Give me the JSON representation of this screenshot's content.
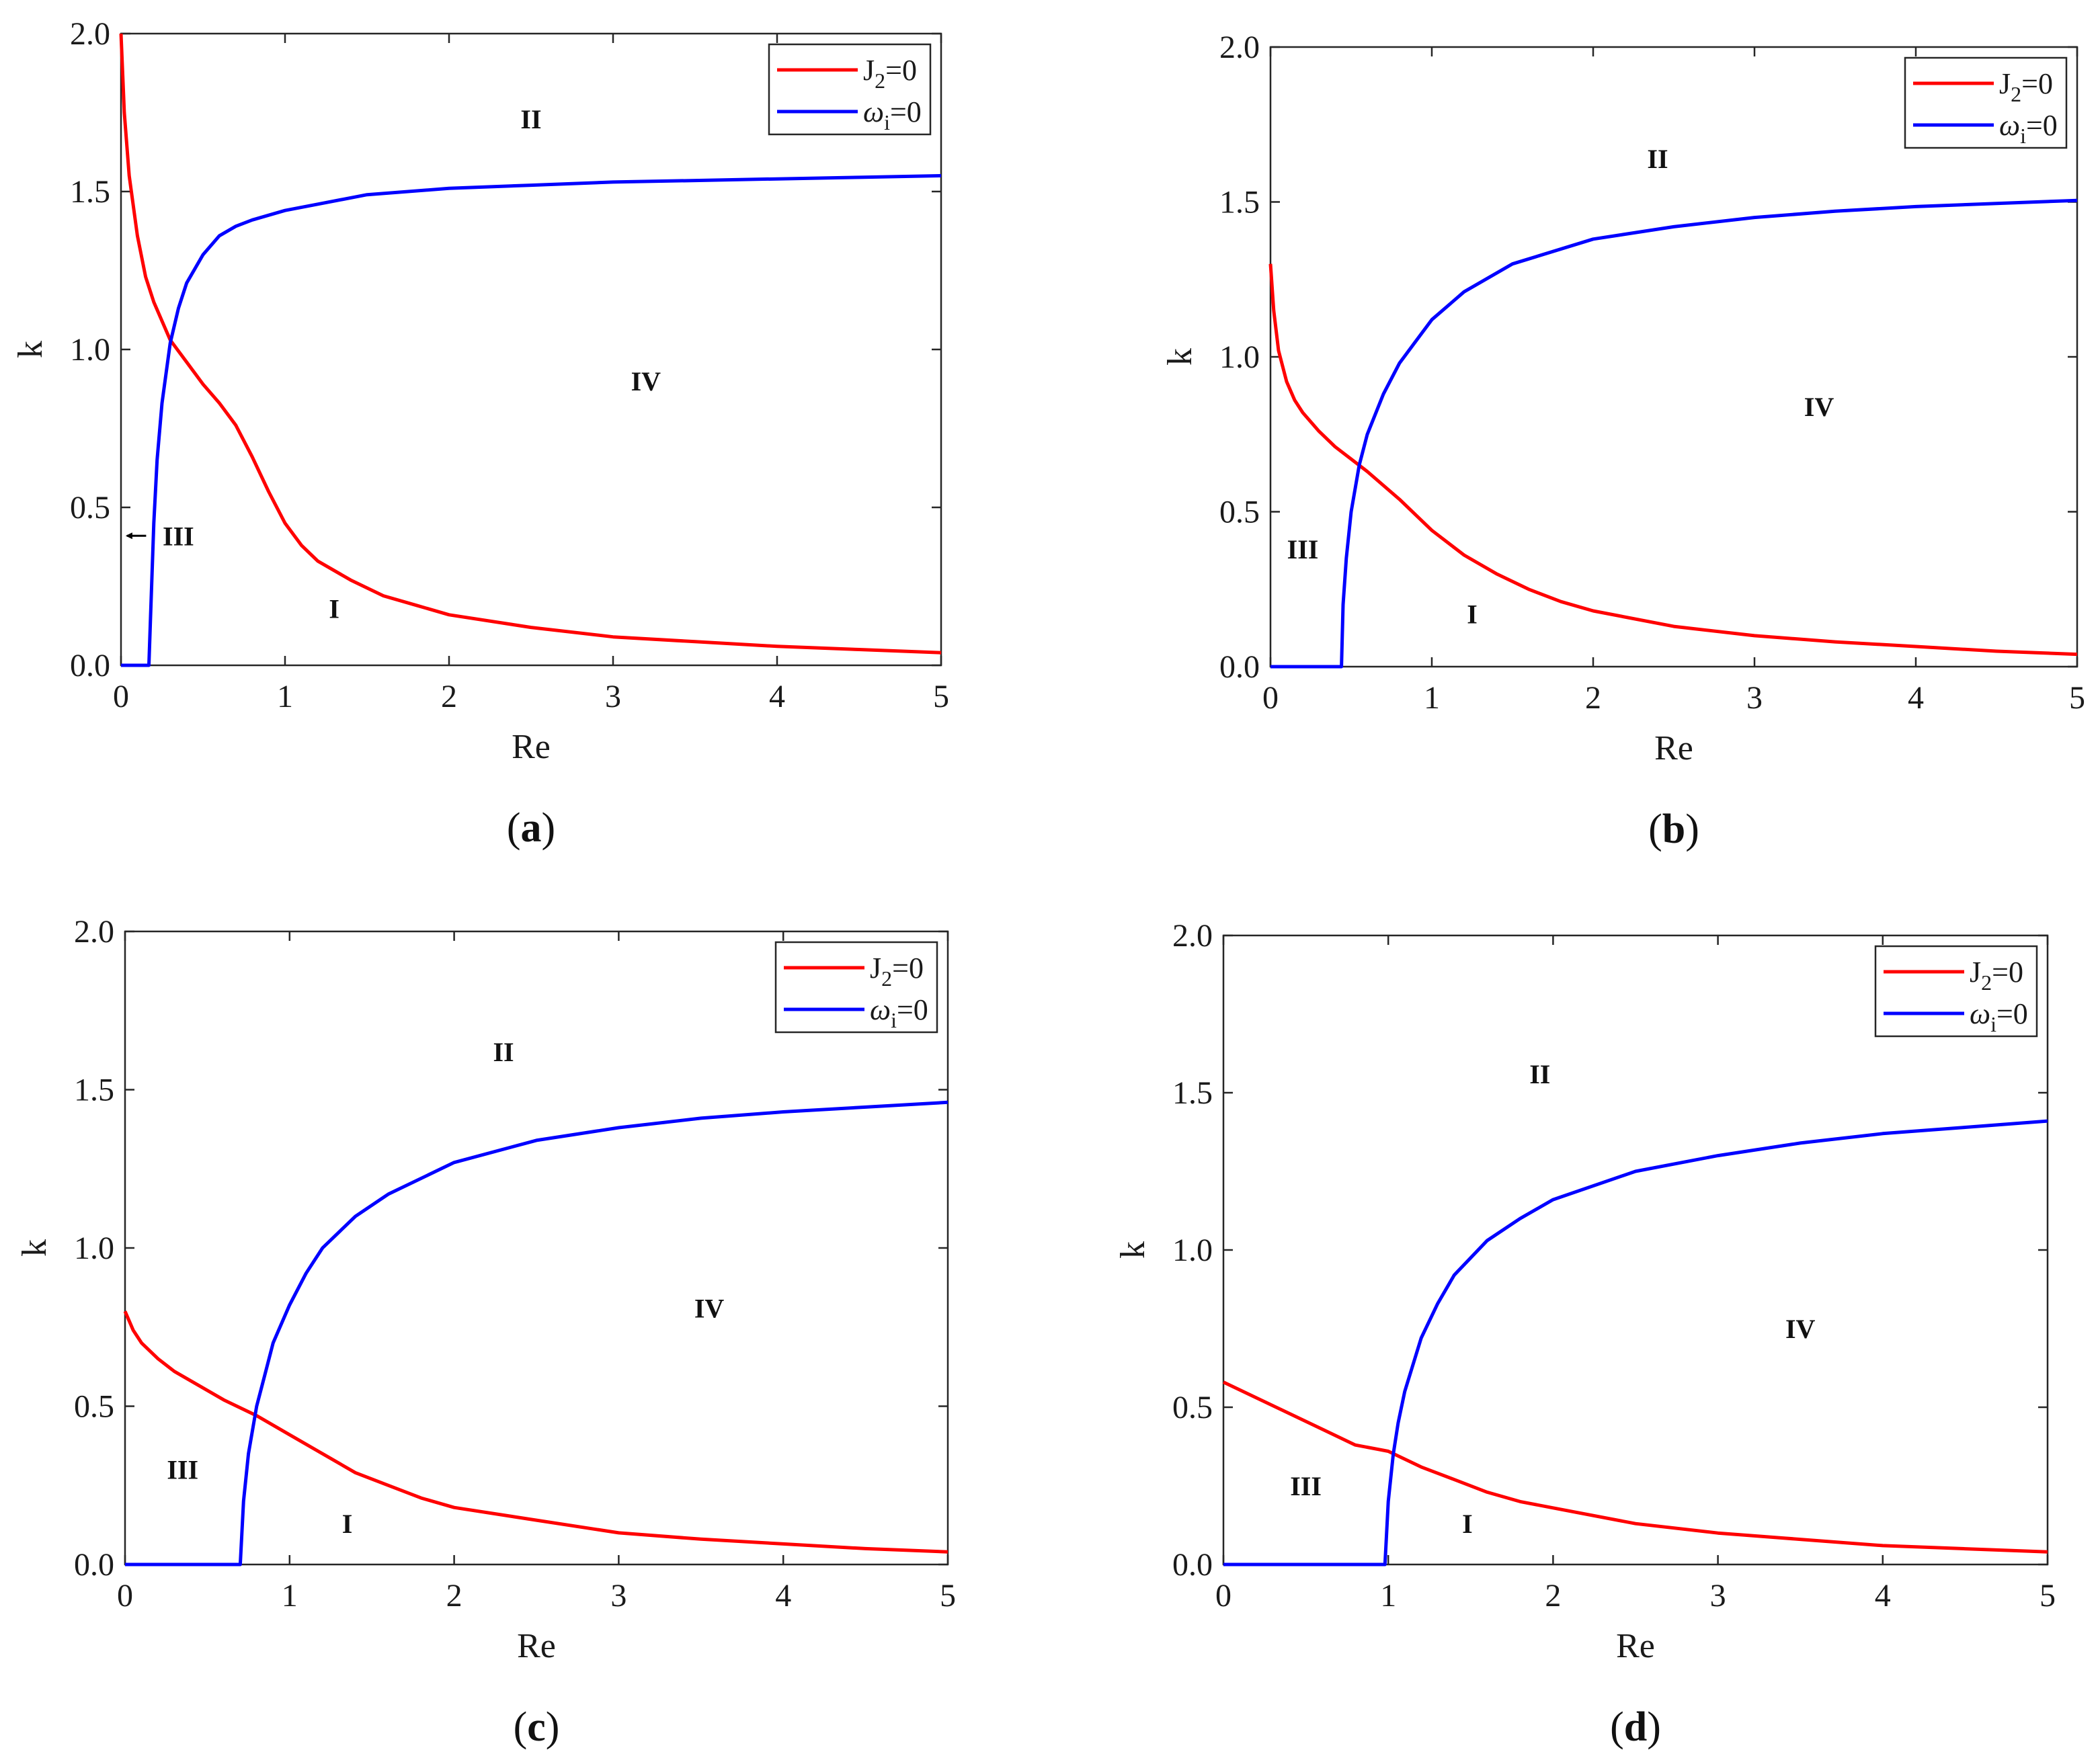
{
  "chart_data": [
    {
      "type": "line",
      "panel": "a",
      "panel_label": "(a)",
      "xlabel": "Re",
      "ylabel": "k",
      "xlim": [
        0,
        5
      ],
      "ylim": [
        0,
        2
      ],
      "xticks": [
        "0",
        "1",
        "2",
        "3",
        "4",
        "5"
      ],
      "yticks": [
        "0.0",
        "0.5",
        "1.0",
        "1.5",
        "2.0"
      ],
      "legend_position": "top-right",
      "series": [
        {
          "name": "J2=0",
          "color": "#ff0000",
          "x": [
            0,
            0.02,
            0.05,
            0.1,
            0.15,
            0.2,
            0.3,
            0.4,
            0.5,
            0.6,
            0.7,
            0.8,
            0.9,
            1.0,
            1.1,
            1.2,
            1.4,
            1.6,
            1.8,
            2.0,
            2.5,
            3.0,
            3.5,
            4.0,
            4.5,
            5.0
          ],
          "y": [
            2.0,
            1.75,
            1.55,
            1.36,
            1.23,
            1.15,
            1.03,
            0.96,
            0.89,
            0.83,
            0.76,
            0.66,
            0.55,
            0.45,
            0.38,
            0.33,
            0.27,
            0.22,
            0.19,
            0.16,
            0.12,
            0.09,
            0.075,
            0.06,
            0.05,
            0.04
          ]
        },
        {
          "name": "ωi=0",
          "color": "#0000ff",
          "x": [
            0,
            0.15,
            0.17,
            0.18,
            0.2,
            0.22,
            0.25,
            0.3,
            0.35,
            0.4,
            0.5,
            0.6,
            0.7,
            0.8,
            1.0,
            1.2,
            1.5,
            2.0,
            2.5,
            3.0,
            3.5,
            4.0,
            4.5,
            5.0
          ],
          "y": [
            0,
            0,
            0,
            0.15,
            0.45,
            0.65,
            0.83,
            1.02,
            1.13,
            1.21,
            1.3,
            1.36,
            1.39,
            1.41,
            1.44,
            1.46,
            1.49,
            1.51,
            1.52,
            1.53,
            1.535,
            1.54,
            1.545,
            1.55
          ]
        }
      ],
      "legend": [
        "J2=0",
        "ωi=0"
      ],
      "regions": [
        {
          "label": "I",
          "x": 1.3,
          "y": 0.18
        },
        {
          "label": "II",
          "x": 2.5,
          "y": 1.73
        },
        {
          "label": "III",
          "x": 0.35,
          "y": 0.41,
          "arrow_to_x": 0.02
        },
        {
          "label": "IV",
          "x": 3.2,
          "y": 0.9
        }
      ]
    },
    {
      "type": "line",
      "panel": "b",
      "panel_label": "(b)",
      "xlabel": "Re",
      "ylabel": "k",
      "xlim": [
        0,
        5
      ],
      "ylim": [
        0,
        2
      ],
      "xticks": [
        "0",
        "1",
        "2",
        "3",
        "4",
        "5"
      ],
      "yticks": [
        "0.0",
        "0.5",
        "1.0",
        "1.5",
        "2.0"
      ],
      "legend_position": "top-right",
      "series": [
        {
          "name": "J2=0",
          "color": "#ff0000",
          "x": [
            0,
            0.02,
            0.05,
            0.1,
            0.15,
            0.2,
            0.3,
            0.4,
            0.5,
            0.6,
            0.8,
            1.0,
            1.2,
            1.4,
            1.6,
            1.8,
            2.0,
            2.5,
            3.0,
            3.5,
            4.0,
            4.5,
            5.0
          ],
          "y": [
            1.3,
            1.15,
            1.02,
            0.92,
            0.86,
            0.82,
            0.76,
            0.71,
            0.67,
            0.63,
            0.54,
            0.44,
            0.36,
            0.3,
            0.25,
            0.21,
            0.18,
            0.13,
            0.1,
            0.08,
            0.065,
            0.05,
            0.04
          ]
        },
        {
          "name": "ωi=0",
          "color": "#0000ff",
          "x": [
            0,
            0.43,
            0.44,
            0.45,
            0.47,
            0.5,
            0.55,
            0.6,
            0.7,
            0.8,
            1.0,
            1.2,
            1.5,
            2.0,
            2.5,
            3.0,
            3.5,
            4.0,
            4.5,
            5.0
          ],
          "y": [
            0,
            0,
            0,
            0.2,
            0.35,
            0.5,
            0.65,
            0.75,
            0.88,
            0.98,
            1.12,
            1.21,
            1.3,
            1.38,
            1.42,
            1.45,
            1.47,
            1.485,
            1.495,
            1.505
          ]
        }
      ],
      "legend": [
        "J2=0",
        "ωi=0"
      ],
      "regions": [
        {
          "label": "I",
          "x": 1.25,
          "y": 0.17
        },
        {
          "label": "II",
          "x": 2.4,
          "y": 1.64
        },
        {
          "label": "III",
          "x": 0.2,
          "y": 0.38
        },
        {
          "label": "IV",
          "x": 3.4,
          "y": 0.84
        }
      ]
    },
    {
      "type": "line",
      "panel": "c",
      "panel_label": "(c)",
      "xlabel": "Re",
      "ylabel": "k",
      "xlim": [
        0,
        5
      ],
      "ylim": [
        0,
        2
      ],
      "xticks": [
        "0",
        "1",
        "2",
        "3",
        "4",
        "5"
      ],
      "yticks": [
        "0.0",
        "0.5",
        "1.0",
        "1.5",
        "2.0"
      ],
      "legend_position": "top-right",
      "series": [
        {
          "name": "J2=0",
          "color": "#ff0000",
          "x": [
            0,
            0.05,
            0.1,
            0.2,
            0.3,
            0.4,
            0.5,
            0.6,
            0.8,
            1.0,
            1.2,
            1.4,
            1.6,
            1.8,
            2.0,
            2.5,
            3.0,
            3.5,
            4.0,
            4.5,
            5.0
          ],
          "y": [
            0.8,
            0.74,
            0.7,
            0.65,
            0.61,
            0.58,
            0.55,
            0.52,
            0.47,
            0.41,
            0.35,
            0.29,
            0.25,
            0.21,
            0.18,
            0.14,
            0.1,
            0.08,
            0.065,
            0.05,
            0.04
          ]
        },
        {
          "name": "ωi=0",
          "color": "#0000ff",
          "x": [
            0,
            0.69,
            0.7,
            0.72,
            0.75,
            0.8,
            0.85,
            0.9,
            1.0,
            1.1,
            1.2,
            1.4,
            1.6,
            2.0,
            2.5,
            3.0,
            3.5,
            4.0,
            4.5,
            5.0
          ],
          "y": [
            0,
            0,
            0,
            0.2,
            0.35,
            0.5,
            0.6,
            0.7,
            0.82,
            0.92,
            1.0,
            1.1,
            1.17,
            1.27,
            1.34,
            1.38,
            1.41,
            1.43,
            1.445,
            1.46
          ]
        }
      ],
      "legend": [
        "J2=0",
        "ωi=0"
      ],
      "regions": [
        {
          "label": "I",
          "x": 1.35,
          "y": 0.13
        },
        {
          "label": "II",
          "x": 2.3,
          "y": 1.62
        },
        {
          "label": "III",
          "x": 0.35,
          "y": 0.3
        },
        {
          "label": "IV",
          "x": 3.55,
          "y": 0.81
        }
      ]
    },
    {
      "type": "line",
      "panel": "d",
      "panel_label": "(d)",
      "xlabel": "Re",
      "ylabel": "k",
      "xlim": [
        0,
        5
      ],
      "ylim": [
        0,
        2
      ],
      "xticks": [
        "0",
        "1",
        "2",
        "3",
        "4",
        "5"
      ],
      "yticks": [
        "0.0",
        "0.5",
        "1.0",
        "1.5",
        "2.0"
      ],
      "legend_position": "top-right",
      "series": [
        {
          "name": "J2=0",
          "color": "#ff0000",
          "x": [
            0,
            0.2,
            0.4,
            0.6,
            0.8,
            1.0,
            1.2,
            1.4,
            1.6,
            1.8,
            2.0,
            2.5,
            3.0,
            3.5,
            4.0,
            4.5,
            5.0
          ],
          "y": [
            0.58,
            0.53,
            0.48,
            0.43,
            0.38,
            0.36,
            0.31,
            0.27,
            0.23,
            0.2,
            0.18,
            0.13,
            0.1,
            0.08,
            0.06,
            0.05,
            0.04
          ]
        },
        {
          "name": "ωi=0",
          "color": "#0000ff",
          "x": [
            0,
            0.97,
            0.98,
            1.0,
            1.03,
            1.06,
            1.1,
            1.2,
            1.3,
            1.4,
            1.6,
            1.8,
            2.0,
            2.5,
            3.0,
            3.5,
            4.0,
            4.5,
            5.0
          ],
          "y": [
            0,
            0,
            0,
            0.2,
            0.35,
            0.45,
            0.55,
            0.72,
            0.83,
            0.92,
            1.03,
            1.1,
            1.16,
            1.25,
            1.3,
            1.34,
            1.37,
            1.39,
            1.41
          ]
        }
      ],
      "legend": [
        "J2=0",
        "ωi=0"
      ],
      "regions": [
        {
          "label": "I",
          "x": 1.48,
          "y": 0.13
        },
        {
          "label": "II",
          "x": 1.92,
          "y": 1.56
        },
        {
          "label": "III",
          "x": 0.5,
          "y": 0.25
        },
        {
          "label": "IV",
          "x": 3.5,
          "y": 0.75
        }
      ]
    }
  ]
}
